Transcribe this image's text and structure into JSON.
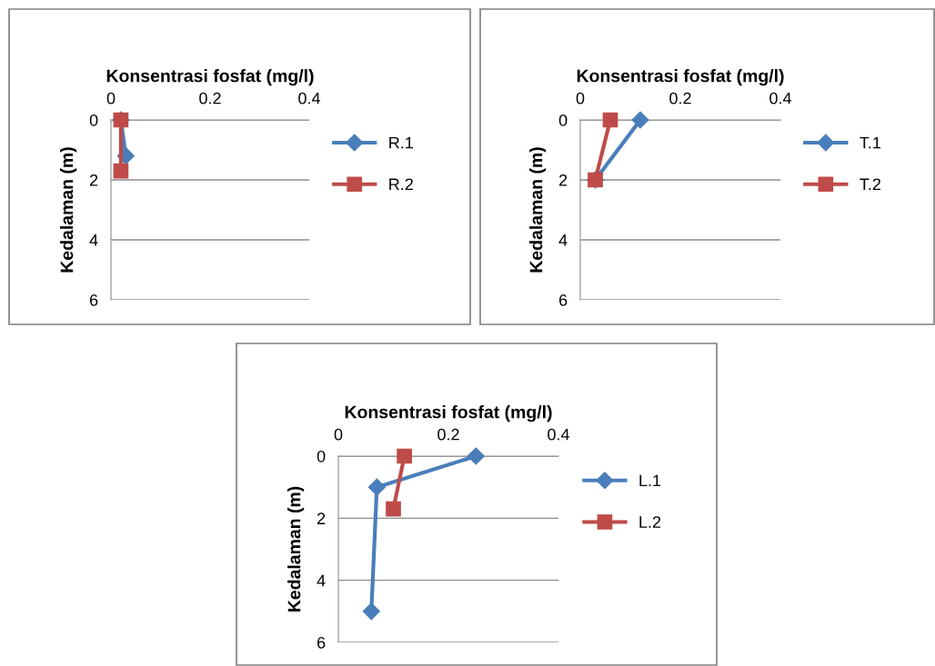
{
  "chart_data": [
    {
      "type": "line",
      "xlabel": "Konsentrasi fosfat (mg/l)",
      "ylabel": "Kedalaman (m)",
      "xlim": [
        0,
        0.4
      ],
      "xticks": [
        0,
        0.2,
        0.4
      ],
      "ylim": [
        6,
        0
      ],
      "yticks": [
        0,
        2,
        4,
        6
      ],
      "grid": "y",
      "legend": "right",
      "series": [
        {
          "name": "R.1",
          "color": "#4a7ebb",
          "marker": "diamond",
          "x": [
            0.02,
            0.03
          ],
          "values": [
            0,
            1.2
          ]
        },
        {
          "name": "R.2",
          "color": "#be4b48",
          "marker": "square",
          "x": [
            0.02,
            0.02
          ],
          "values": [
            0,
            1.7
          ]
        }
      ]
    },
    {
      "type": "line",
      "xlabel": "Konsentrasi fosfat (mg/l)",
      "ylabel": "Kedalaman (m)",
      "xlim": [
        0,
        0.4
      ],
      "xticks": [
        0,
        0.2,
        0.4
      ],
      "ylim": [
        6,
        0
      ],
      "yticks": [
        0,
        2,
        4,
        6
      ],
      "grid": "y",
      "legend": "right",
      "series": [
        {
          "name": "T.1",
          "color": "#4a7ebb",
          "marker": "diamond",
          "x": [
            0.12,
            0.03
          ],
          "values": [
            0,
            2
          ]
        },
        {
          "name": "T.2",
          "color": "#be4b48",
          "marker": "square",
          "x": [
            0.06,
            0.03
          ],
          "values": [
            0,
            2
          ]
        }
      ]
    },
    {
      "type": "line",
      "xlabel": "Konsentrasi fosfat (mg/l)",
      "ylabel": "Kedalaman (m)",
      "xlim": [
        0,
        0.4
      ],
      "xticks": [
        0,
        0.2,
        0.4
      ],
      "ylim": [
        6,
        0
      ],
      "yticks": [
        0,
        2,
        4,
        6
      ],
      "grid": "y",
      "legend": "right",
      "series": [
        {
          "name": "L.1",
          "color": "#4a7ebb",
          "marker": "diamond",
          "x": [
            0.25,
            0.07,
            0.06
          ],
          "values": [
            0,
            1,
            5
          ]
        },
        {
          "name": "L.2",
          "color": "#be4b48",
          "marker": "square",
          "x": [
            0.12,
            0.1
          ],
          "values": [
            0,
            1.7
          ]
        }
      ]
    }
  ]
}
